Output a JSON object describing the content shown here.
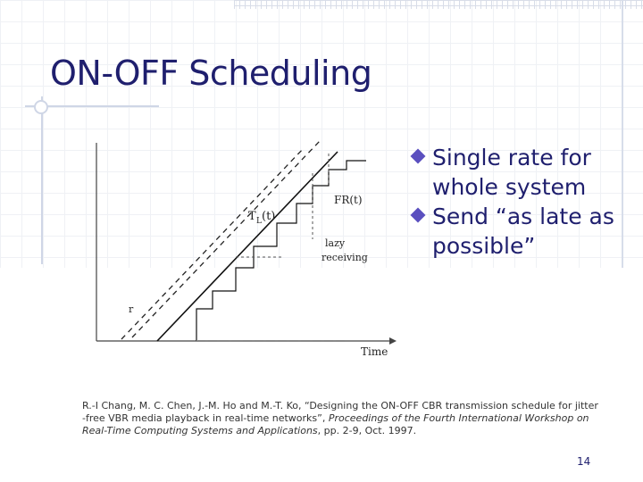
{
  "slide": {
    "title": "ON-OFF Scheduling",
    "page_number": "14"
  },
  "bullets": [
    "Single rate for whole system",
    "Send “as late as possible”"
  ],
  "figure": {
    "label_fr": "FR(t)",
    "label_tl": "T",
    "label_tl_sub": "L",
    "label_tl_paren": "(t)",
    "label_lazy_1": "lazy",
    "label_lazy_2": "receiving",
    "label_r": "r",
    "label_time": "Time"
  },
  "reference": {
    "authors": "R.-I Chang, M. C. Chen, J.-M. Ho and M.-T. Ko, “Designing the ON-OFF CBR transmission schedule for jitter -free VBR media playback in real-time networks”,",
    "venue": "Proceedings of the Fourth International Workshop on Real-Time Computing Systems and Applications",
    "details": ", pp. 2-9, Oct. 1997."
  },
  "colors": {
    "title": "#1f1f6e",
    "bullet_icon": "#5a4fbf"
  }
}
